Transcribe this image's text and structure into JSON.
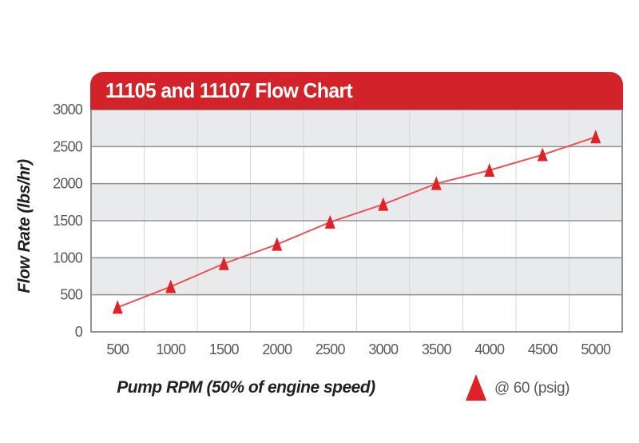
{
  "header": {
    "title": "11105 and 11107 Flow Chart",
    "background_color": "#d2232a",
    "text_color": "#ffffff"
  },
  "chart_data": {
    "type": "line",
    "title": "11105 and 11107 Flow Chart",
    "xlabel": "Pump RPM (50% of engine speed)",
    "ylabel": "Flow Rate (lbs/hr)",
    "x": [
      500,
      1000,
      1500,
      2000,
      2500,
      3000,
      3500,
      4000,
      4500,
      5000
    ],
    "y_ticks": [
      0,
      500,
      1000,
      1500,
      2000,
      2500,
      3000
    ],
    "ylim": [
      0,
      3000
    ],
    "series": [
      {
        "name": "@ 60 (psig)",
        "marker": "triangle",
        "marker_color": "#e02227",
        "line_color": "#ef5156",
        "values": [
          330,
          610,
          920,
          1180,
          1480,
          1720,
          2000,
          2180,
          2390,
          2630
        ]
      }
    ],
    "grid": {
      "horizontal_color": "#8f9194",
      "vertical_color": "#d5d7d9",
      "band_colors": [
        "#e9eaec",
        "#ffffff"
      ]
    },
    "tick_label_color": "#58595b",
    "axis_title_color": "#231f20",
    "legend_position": "bottom-right",
    "grid_on": true
  }
}
